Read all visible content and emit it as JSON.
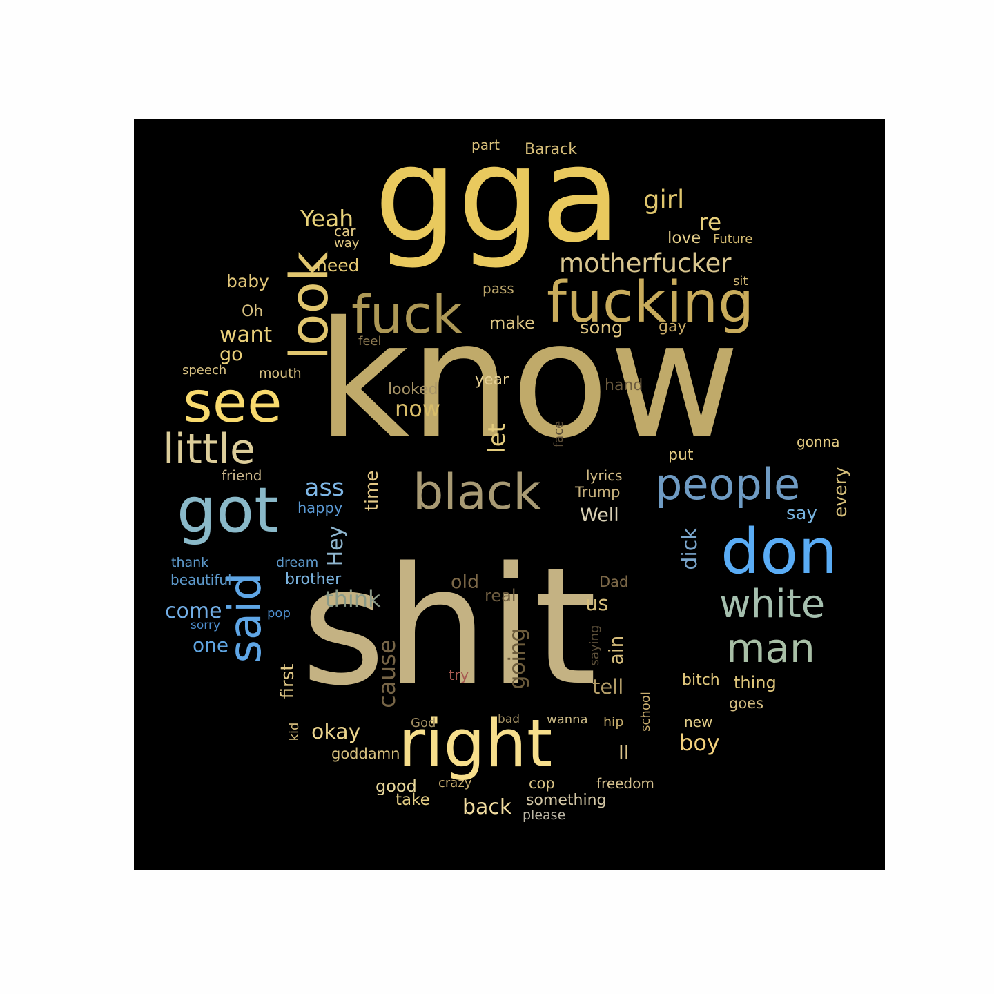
{
  "colors": {
    "background": "#fefefe",
    "panel": "#000000"
  },
  "words": [
    {
      "text": "know",
      "color": "#c0aa6a"
    },
    {
      "text": "shit",
      "color": "#c4b283"
    },
    {
      "text": "gga",
      "color": "#e9c95e"
    },
    {
      "text": "fucking",
      "color": "#c9ac5c"
    },
    {
      "text": "fuck",
      "color": "#ad9856"
    },
    {
      "text": "look",
      "color": "#e1c66f"
    },
    {
      "text": "see",
      "color": "#f8da6e"
    },
    {
      "text": "little",
      "color": "#dccd9a"
    },
    {
      "text": "got",
      "color": "#8ab9c9"
    },
    {
      "text": "said",
      "color": "#5fa6e6"
    },
    {
      "text": "black",
      "color": "#a89a74"
    },
    {
      "text": "people",
      "color": "#6f9bc3"
    },
    {
      "text": "don",
      "color": "#5aacf5"
    },
    {
      "text": "white",
      "color": "#a5bfae"
    },
    {
      "text": "man",
      "color": "#a8bfa6"
    },
    {
      "text": "right",
      "color": "#f6de8c"
    },
    {
      "text": "motherfucker",
      "color": "#d9c68f"
    },
    {
      "text": "girl",
      "color": "#e0c66d"
    },
    {
      "text": "Yeah",
      "color": "#e8d27a"
    },
    {
      "text": "re",
      "color": "#e7cf7b"
    },
    {
      "text": "part",
      "color": "#d9c07a"
    },
    {
      "text": "Barack",
      "color": "#d9c07a"
    },
    {
      "text": "car",
      "color": "#e2c984"
    },
    {
      "text": "way",
      "color": "#e2c984"
    },
    {
      "text": "love",
      "color": "#e5cf8b"
    },
    {
      "text": "Future",
      "color": "#d2b86f"
    },
    {
      "text": "need",
      "color": "#e5c973"
    },
    {
      "text": "baby",
      "color": "#e2c77a"
    },
    {
      "text": "sit",
      "color": "#d2b875"
    },
    {
      "text": "pass",
      "color": "#bca66b"
    },
    {
      "text": "Oh",
      "color": "#d8c181"
    },
    {
      "text": "want",
      "color": "#e9cf7a"
    },
    {
      "text": "go",
      "color": "#e9cf7a"
    },
    {
      "text": "make",
      "color": "#e1c987"
    },
    {
      "text": "song",
      "color": "#e0c682"
    },
    {
      "text": "gay",
      "color": "#c8aa67"
    },
    {
      "text": "feel",
      "color": "#8d7a52"
    },
    {
      "text": "speech",
      "color": "#d9c283"
    },
    {
      "text": "mouth",
      "color": "#d9c283"
    },
    {
      "text": "year",
      "color": "#e6d094"
    },
    {
      "text": "looked",
      "color": "#a79467"
    },
    {
      "text": "hand",
      "color": "#6b5a3e"
    },
    {
      "text": "now",
      "color": "#d8bd69"
    },
    {
      "text": "let",
      "color": "#e3cc7e"
    },
    {
      "text": "face",
      "color": "#5a4c36"
    },
    {
      "text": "gonna",
      "color": "#e3cb83"
    },
    {
      "text": "put",
      "color": "#e3cb83"
    },
    {
      "text": "friend",
      "color": "#cdb98e"
    },
    {
      "text": "lyrics",
      "color": "#d1bb86"
    },
    {
      "text": "Trump",
      "color": "#c6b07c"
    },
    {
      "text": "ass",
      "color": "#7fb7e6"
    },
    {
      "text": "time",
      "color": "#e4c987"
    },
    {
      "text": "happy",
      "color": "#5c9bd6"
    },
    {
      "text": "Well",
      "color": "#d8cfb3"
    },
    {
      "text": "say",
      "color": "#78b4e0"
    },
    {
      "text": "every",
      "color": "#d7c07a"
    },
    {
      "text": "Hey",
      "color": "#8fb6cf"
    },
    {
      "text": "dick",
      "color": "#7ba6cc"
    },
    {
      "text": "thank",
      "color": "#5e9acc"
    },
    {
      "text": "dream",
      "color": "#5e9acc"
    },
    {
      "text": "beautiful",
      "color": "#5e9acc"
    },
    {
      "text": "brother",
      "color": "#7ab2dd"
    },
    {
      "text": "old",
      "color": "#7c6848"
    },
    {
      "text": "Dad",
      "color": "#7c6848"
    },
    {
      "text": "real",
      "color": "#6d5c40"
    },
    {
      "text": "think",
      "color": "#8a9a88"
    },
    {
      "text": "come",
      "color": "#72aee6"
    },
    {
      "text": "us",
      "color": "#d6be7c"
    },
    {
      "text": "pop",
      "color": "#4f90d0"
    },
    {
      "text": "sorry",
      "color": "#4f90d0"
    },
    {
      "text": "one",
      "color": "#5fa4e0"
    },
    {
      "text": "cause",
      "color": "#776547"
    },
    {
      "text": "going",
      "color": "#6d5c3c"
    },
    {
      "text": "saying",
      "color": "#5d503a"
    },
    {
      "text": "ain",
      "color": "#d7be7c"
    },
    {
      "text": "first",
      "color": "#e2c987"
    },
    {
      "text": "try",
      "color": "#a85a52"
    },
    {
      "text": "tell",
      "color": "#b39d68"
    },
    {
      "text": "bitch",
      "color": "#e0c77c"
    },
    {
      "text": "thing",
      "color": "#e0c77c"
    },
    {
      "text": "goes",
      "color": "#d4bd82"
    },
    {
      "text": "school",
      "color": "#c9ad6e"
    },
    {
      "text": "kid",
      "color": "#d6bd7d"
    },
    {
      "text": "God",
      "color": "#a28f63"
    },
    {
      "text": "bad",
      "color": "#a28f63"
    },
    {
      "text": "wanna",
      "color": "#c8b784"
    },
    {
      "text": "hip",
      "color": "#c6ad6d"
    },
    {
      "text": "new",
      "color": "#e5d08b"
    },
    {
      "text": "okay",
      "color": "#ecd58e"
    },
    {
      "text": "boy",
      "color": "#f2d07c"
    },
    {
      "text": "goddamn",
      "color": "#d8c17f"
    },
    {
      "text": "ll",
      "color": "#dcc48a"
    },
    {
      "text": "good",
      "color": "#e8d79b"
    },
    {
      "text": "crazy",
      "color": "#c9ae71"
    },
    {
      "text": "cop",
      "color": "#dbc487"
    },
    {
      "text": "freedom",
      "color": "#d4c08e"
    },
    {
      "text": "take",
      "color": "#e5ce85"
    },
    {
      "text": "back",
      "color": "#f1dca0"
    },
    {
      "text": "something",
      "color": "#d3c7a6"
    },
    {
      "text": "please",
      "color": "#bdb7a6"
    }
  ]
}
